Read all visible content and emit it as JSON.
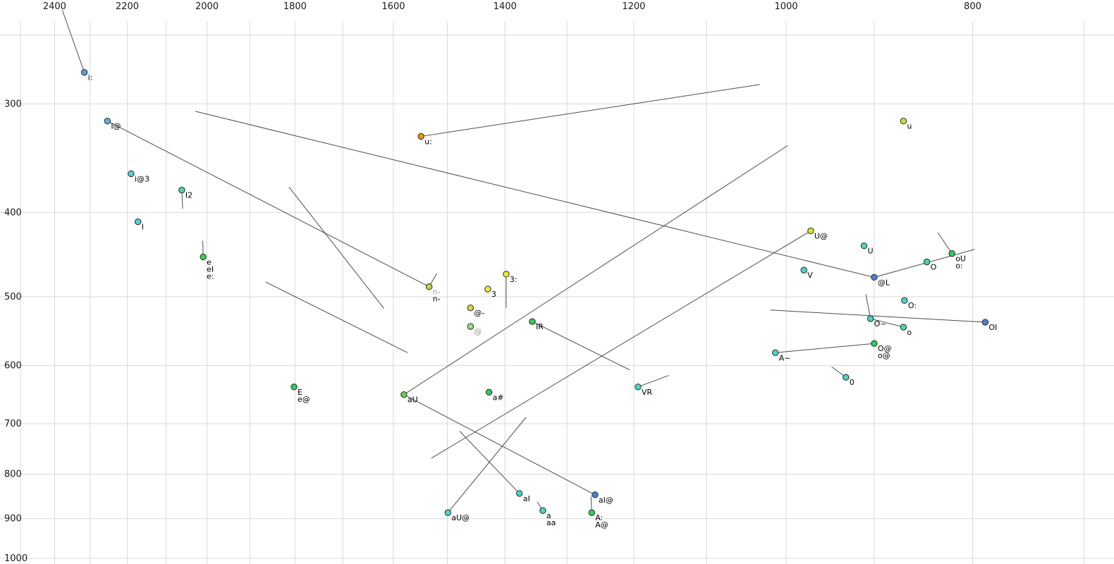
{
  "chart_data": {
    "type": "scatter",
    "title": "",
    "description": "Vowel formant plot (F2 horizontal reversed log scale, F1 vertical log scale), points labeled with phonetic vowel symbols and diphthong trajectory lines",
    "x_axis": {
      "label": "",
      "unit": "Hz",
      "scale": "log",
      "direction": "reversed",
      "labeled_ticks": [
        2400,
        2200,
        2000,
        1800,
        1600,
        1400,
        1200,
        1000,
        800
      ],
      "gridlines": [
        2500,
        2400,
        2300,
        2200,
        2100,
        2000,
        1900,
        1800,
        1700,
        1600,
        1500,
        1400,
        1300,
        1200,
        1100,
        1000,
        900,
        800,
        700
      ]
    },
    "y_axis": {
      "label": "",
      "unit": "Hz",
      "scale": "log",
      "direction": "down",
      "labeled_ticks": [
        300,
        400,
        500,
        600,
        700,
        800,
        900,
        1000
      ],
      "gridlines": [
        250,
        300,
        400,
        500,
        600,
        700,
        800,
        900,
        1000
      ]
    },
    "grid_color": "#d9d9d9",
    "line_color": "#3a3a3a",
    "point_stroke": "#2a2a2a",
    "points": [
      {
        "labels": [
          "i:"
        ],
        "f2": 2316,
        "f1": 276,
        "color": "#5b9bd5"
      },
      {
        "labels": [
          "I@"
        ],
        "f2": 2253,
        "f1": 314,
        "color": "#5ab4d6"
      },
      {
        "labels": [
          "i@3"
        ],
        "f2": 2190,
        "f1": 361,
        "color": "#55d0d0"
      },
      {
        "labels": [
          "I2"
        ],
        "f2": 2061,
        "f1": 377,
        "color": "#43d6a0"
      },
      {
        "labels": [
          "I"
        ],
        "f2": 2172,
        "f1": 410,
        "color": "#55d0d0"
      },
      {
        "labels": [
          "e",
          "eI",
          "e:"
        ],
        "f2": 2009,
        "f1": 450,
        "color": "#3bce54"
      },
      {
        "labels": [
          "u:"
        ],
        "f2": 1548,
        "f1": 327,
        "color": "#e8960f"
      },
      {
        "labels": [
          "u"
        ],
        "f2": 869,
        "f1": 314,
        "color": "#c9e234"
      },
      {
        "labels": [
          "n-",
          "n-"
        ],
        "label_colors": [
          "#999999",
          "#000000"
        ],
        "f2": 1533,
        "f1": 487,
        "color": "#b5d943"
      },
      {
        "labels": [
          "3"
        ],
        "f2": 1429,
        "f1": 490,
        "color": "#ece93a"
      },
      {
        "labels": [
          "3:"
        ],
        "f2": 1398,
        "f1": 471,
        "color": "#ece93a"
      },
      {
        "labels": [
          "@-"
        ],
        "f2": 1459,
        "f1": 515,
        "color": "#d9d943"
      },
      {
        "labels": [
          "@"
        ],
        "label_colors": [
          "#999999"
        ],
        "f2": 1459,
        "f1": 541,
        "color": "#8fe87f"
      },
      {
        "labels": [
          "IR"
        ],
        "f2": 1355,
        "f1": 534,
        "color": "#2ecc5e"
      },
      {
        "labels": [
          "E",
          "e@"
        ],
        "f2": 1802,
        "f1": 635,
        "color": "#2ecc5e"
      },
      {
        "labels": [
          "aU"
        ],
        "f2": 1580,
        "f1": 648,
        "color": "#63cf4a"
      },
      {
        "labels": [
          "a#"
        ],
        "f2": 1427,
        "f1": 644,
        "color": "#2ecc5e"
      },
      {
        "labels": [
          "VR"
        ],
        "f2": 1194,
        "f1": 635,
        "color": "#49d6c4"
      },
      {
        "labels": [
          "A~"
        ],
        "f2": 1013,
        "f1": 580,
        "color": "#49d6c4"
      },
      {
        "labels": [
          "U@"
        ],
        "f2": 971,
        "f1": 420,
        "color": "#e0e02a"
      },
      {
        "labels": [
          "U"
        ],
        "f2": 911,
        "f1": 437,
        "color": "#49d6c4"
      },
      {
        "labels": [
          "V"
        ],
        "f2": 979,
        "f1": 466,
        "color": "#49d6c4"
      },
      {
        "labels": [
          "@L"
        ],
        "f2": 900,
        "f1": 475,
        "color": "#4a7fd6"
      },
      {
        "labels": [
          "O"
        ],
        "f2": 845,
        "f1": 456,
        "color": "#3fd6a8"
      },
      {
        "labels": [
          "oU",
          "o:"
        ],
        "f2": 820,
        "f1": 446,
        "color": "#2ecc5e"
      },
      {
        "labels": [
          "O:"
        ],
        "f2": 868,
        "f1": 505,
        "color": "#49d6c4"
      },
      {
        "labels": [
          "O~"
        ],
        "f2": 904,
        "f1": 530,
        "color": "#49d6c4"
      },
      {
        "labels": [
          "o"
        ],
        "f2": 869,
        "f1": 542,
        "color": "#49d6c4"
      },
      {
        "labels": [
          "OI"
        ],
        "f2": 788,
        "f1": 535,
        "color": "#4a7fd6"
      },
      {
        "labels": [
          "O@",
          "o@"
        ],
        "f2": 900,
        "f1": 566,
        "color": "#2ecc5e"
      },
      {
        "labels": [
          "0"
        ],
        "f2": 931,
        "f1": 619,
        "color": "#49d6c4"
      },
      {
        "labels": [
          "aI"
        ],
        "f2": 1376,
        "f1": 842,
        "color": "#49d6c4"
      },
      {
        "labels": [
          "aU@"
        ],
        "f2": 1499,
        "f1": 886,
        "color": "#49d6c4"
      },
      {
        "labels": [
          "a",
          "aa"
        ],
        "f2": 1338,
        "f1": 881,
        "color": "#49d6c4"
      },
      {
        "labels": [
          "aI@"
        ],
        "f2": 1257,
        "f1": 845,
        "color": "#4a7fd6"
      },
      {
        "labels": [
          "A:",
          "A@"
        ],
        "f2": 1262,
        "f1": 886,
        "color": "#2ecc5e"
      }
    ],
    "trajectories": [
      {
        "from": [
          2378,
          234
        ],
        "to": [
          2316,
          276
        ]
      },
      {
        "from": [
          2253,
          314
        ],
        "to": [
          1533,
          487
        ]
      },
      {
        "from": [
          2028,
          306
        ],
        "to": [
          900,
          475
        ]
      },
      {
        "from": [
          1813,
          374
        ],
        "to": [
          1618,
          516
        ]
      },
      {
        "from": [
          1864,
          481
        ],
        "to": [
          1573,
          580
        ]
      },
      {
        "from": [
          2010,
          431
        ],
        "to": [
          2009,
          450
        ]
      },
      {
        "from": [
          1548,
          327
        ],
        "to": [
          1032,
          285
        ]
      },
      {
        "from": [
          1519,
          470
        ],
        "to": [
          1533,
          487
        ]
      },
      {
        "from": [
          1398,
          471
        ],
        "to": [
          1398,
          515
        ]
      },
      {
        "from": [
          1580,
          648
        ],
        "to": [
          998,
          335
        ]
      },
      {
        "from": [
          971,
          420
        ],
        "to": [
          1529,
          767
        ]
      },
      {
        "from": [
          1355,
          534
        ],
        "to": [
          1206,
          607
        ]
      },
      {
        "from": [
          1194,
          635
        ],
        "to": [
          1151,
          616
        ]
      },
      {
        "from": [
          1013,
          580
        ],
        "to": [
          900,
          566
        ]
      },
      {
        "from": [
          834,
          422
        ],
        "to": [
          820,
          446
        ]
      },
      {
        "from": [
          909,
          497
        ],
        "to": [
          904,
          530
        ]
      },
      {
        "from": [
          904,
          530
        ],
        "to": [
          869,
          542
        ]
      },
      {
        "from": [
          947,
          602
        ],
        "to": [
          931,
          619
        ]
      },
      {
        "from": [
          1347,
          861
        ],
        "to": [
          1338,
          881
        ]
      },
      {
        "from": [
          1263,
          849
        ],
        "to": [
          1262,
          886
        ]
      },
      {
        "from": [
          788,
          535
        ],
        "to": [
          1019,
          518
        ]
      },
      {
        "from": [
          900,
          475
        ],
        "to": [
          798,
          441
        ]
      },
      {
        "from": [
          1499,
          886
        ],
        "to": [
          1365,
          688
        ]
      },
      {
        "from": [
          1580,
          648
        ],
        "to": [
          1257,
          845
        ]
      },
      {
        "from": [
          1376,
          842
        ],
        "to": [
          1478,
          714
        ]
      },
      {
        "from": [
          2061,
          377
        ],
        "to": [
          2059,
          396
        ]
      }
    ]
  }
}
